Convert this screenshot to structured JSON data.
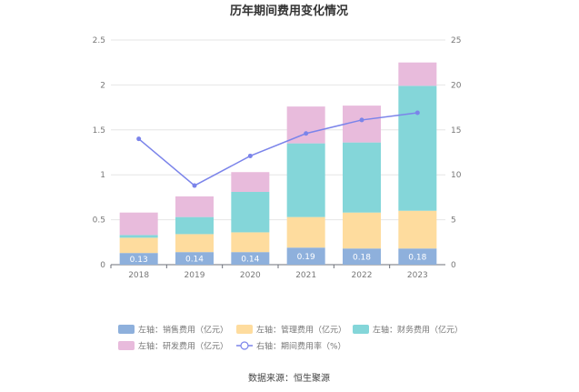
{
  "colors": {
    "sales": "#8eb0dc",
    "admin": "#fedc9e",
    "finance": "#84d6d9",
    "rd": "#e8bbdc",
    "rate": "#7b84ea",
    "bar_label": "#ffffff"
  },
  "chart_data": {
    "type": "bar",
    "title": "历年期间费用变化情况",
    "categories": [
      "2018",
      "2019",
      "2020",
      "2021",
      "2022",
      "2023"
    ],
    "left_axis": {
      "ylim": [
        0,
        2.5
      ],
      "ticks": [
        "0",
        "0.5",
        "1",
        "1.5",
        "2",
        "2.5"
      ]
    },
    "right_axis": {
      "ylim": [
        0,
        25
      ],
      "ticks": [
        "0",
        "5",
        "10",
        "15",
        "20",
        "25"
      ]
    },
    "series": [
      {
        "name": "左轴：销售费用（亿元）",
        "key": "sales",
        "axis": "left",
        "type": "bar",
        "values": [
          0.13,
          0.14,
          0.14,
          0.19,
          0.18,
          0.18
        ],
        "labels": [
          "0.13",
          "0.14",
          "0.14",
          "0.19",
          "0.18",
          "0.18"
        ]
      },
      {
        "name": "左轴：管理费用（亿元）",
        "key": "admin",
        "axis": "left",
        "type": "bar",
        "values": [
          0.17,
          0.2,
          0.22,
          0.34,
          0.4,
          0.42
        ]
      },
      {
        "name": "左轴：财务费用（亿元）",
        "key": "finance",
        "axis": "left",
        "type": "bar",
        "values": [
          0.03,
          0.19,
          0.45,
          0.82,
          0.78,
          1.39
        ]
      },
      {
        "name": "左轴：研发费用（亿元）",
        "key": "rd",
        "axis": "left",
        "type": "bar",
        "values": [
          0.25,
          0.23,
          0.22,
          0.41,
          0.41,
          0.26
        ]
      },
      {
        "name": "右轴：期间费用率（%）",
        "key": "rate",
        "axis": "right",
        "type": "line",
        "values": [
          14.0,
          8.8,
          12.1,
          14.6,
          16.1,
          16.9
        ]
      }
    ]
  },
  "legend": [
    {
      "key": "sales",
      "label": "左轴：销售费用（亿元）",
      "kind": "rect"
    },
    {
      "key": "admin",
      "label": "左轴：管理费用（亿元）",
      "kind": "rect"
    },
    {
      "key": "finance",
      "label": "左轴：财务费用（亿元）",
      "kind": "rect"
    },
    {
      "key": "rd",
      "label": "左轴：研发费用（亿元）",
      "kind": "rect"
    },
    {
      "key": "rate",
      "label": "右轴：期间费用率（%）",
      "kind": "line"
    }
  ],
  "source": "数据来源：恒生聚源"
}
